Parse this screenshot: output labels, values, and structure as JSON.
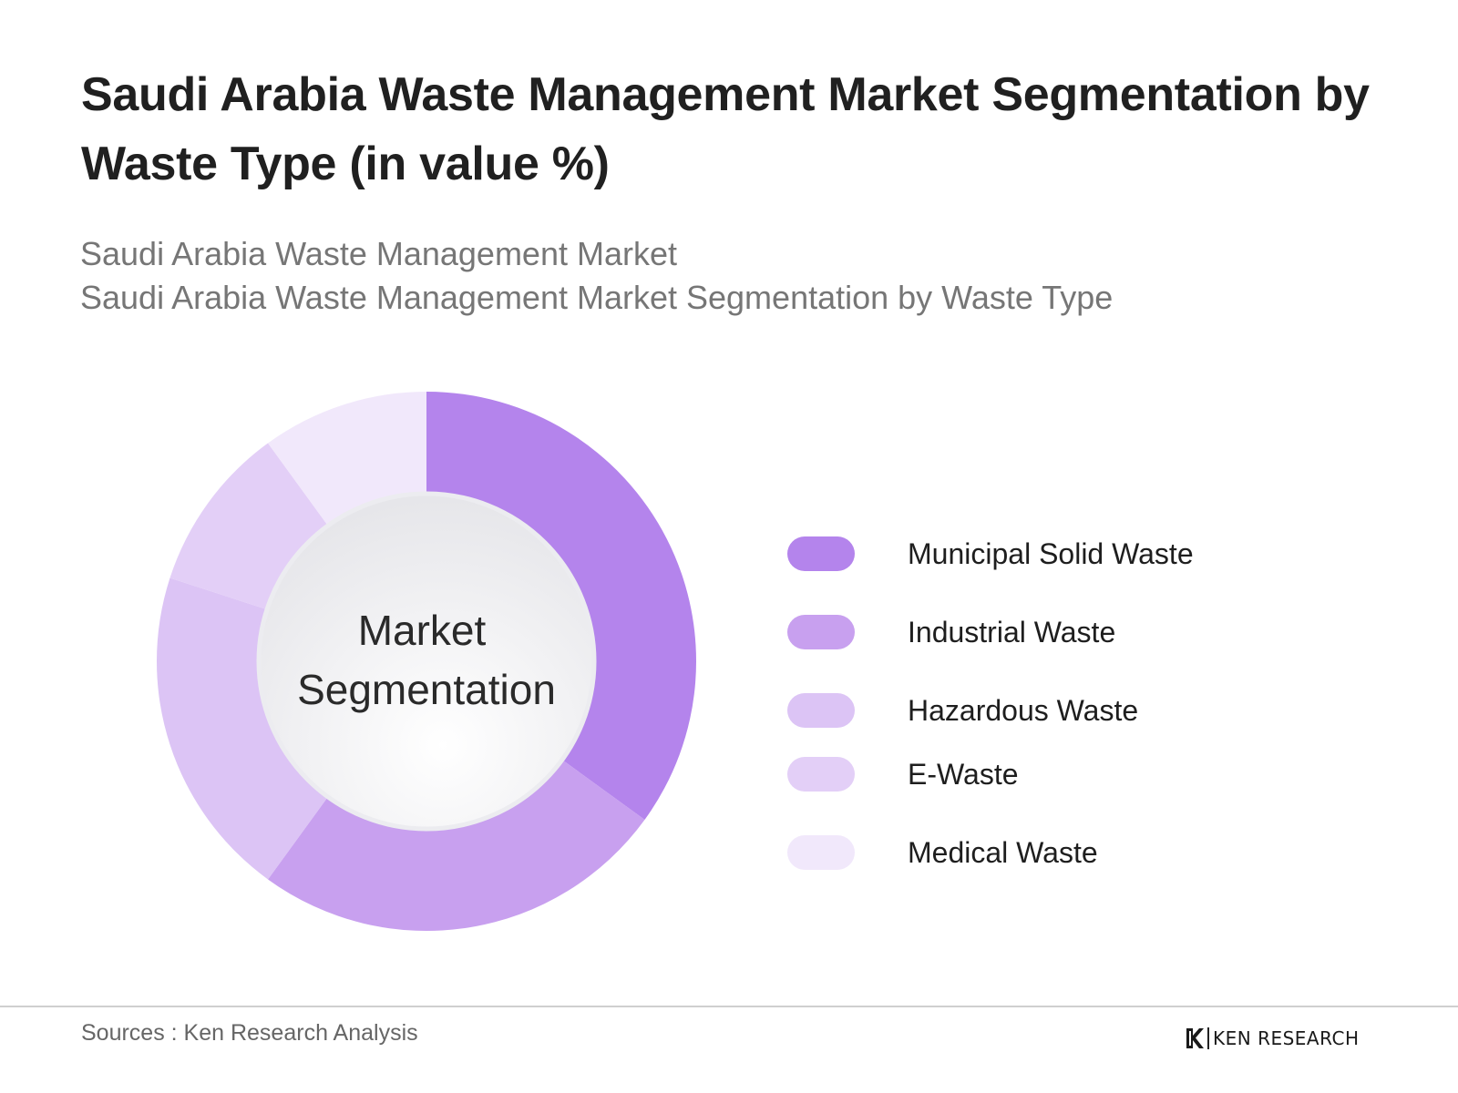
{
  "title": "Saudi Arabia Waste Management Market Segmentation by Waste Type (in value %)",
  "subtitles": [
    "Saudi Arabia Waste Management Market",
    "Saudi Arabia Waste Management Market Segmentation by Waste Type"
  ],
  "chart_data": {
    "type": "pie",
    "variant": "donut",
    "center_label": [
      "Market",
      "Segmentation"
    ],
    "categories": [
      "Municipal Solid Waste",
      "Industrial Waste",
      "Hazardous Waste",
      "E-Waste",
      "Medical Waste"
    ],
    "values": [
      35,
      25,
      20,
      10,
      10
    ],
    "colors": [
      "#b484ec",
      "#c8a0ef",
      "#dcc4f5",
      "#e3cff7",
      "#f1e8fb"
    ],
    "legend": "right"
  },
  "footer": {
    "sources": "Sources : Ken Research Analysis",
    "brand": "KEN RESEARCH"
  }
}
